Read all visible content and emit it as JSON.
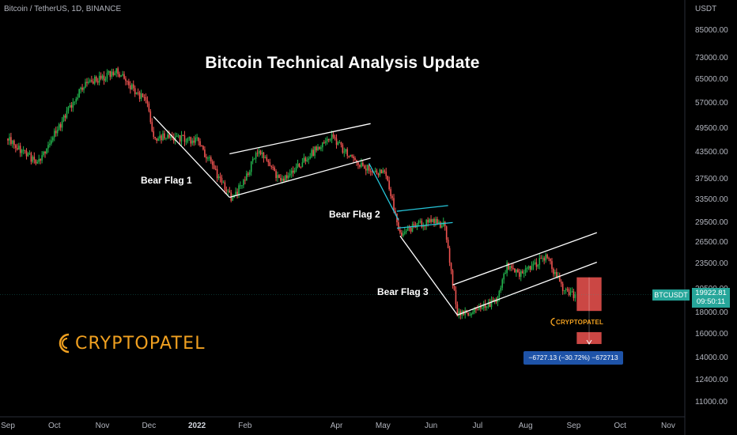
{
  "header": {
    "symbol": "Bitcoin / TetherUS, 1D, BINANCE"
  },
  "title": "Bitcoin Technical Analysis Update",
  "annotations": {
    "bear_flag_1": "Bear Flag 1",
    "bear_flag_2": "Bear Flag 2",
    "bear_flag_3": "Bear Flag 3",
    "measure": "−6727.13 (−30.72%) −672713"
  },
  "watermark": {
    "brand": "CRYPTOPATEL",
    "small": "CRYPTOPATEL"
  },
  "price_axis": {
    "unit": "USDT",
    "current_symbol": "BTCUSDT",
    "current_price": "19922.81",
    "countdown": "09:50:11"
  },
  "colors": {
    "background": "#000000",
    "up": "#26a69a",
    "up_candle": "#22b14c",
    "down": "#ef5350",
    "brand": "#f0a020",
    "measure": "#1e53a8",
    "flag2_pole": "#26c6da"
  },
  "chart_data": {
    "type": "candlestick",
    "title": "Bitcoin Technical Analysis Update",
    "symbol": "BTCUSDT",
    "timeframe": "1D",
    "exchange": "BINANCE",
    "y_unit": "USDT",
    "y_scale": "log",
    "y_ticks": [
      "85000.00",
      "73000.00",
      "65000.00",
      "57000.00",
      "49500.00",
      "43500.00",
      "37500.00",
      "33500.00",
      "29500.00",
      "26500.00",
      "23500.00",
      "20500.00",
      "18000.00",
      "16000.00",
      "14000.00",
      "12400.00",
      "11000.00"
    ],
    "y_ticks_values": [
      85000,
      73000,
      65000,
      57000,
      49500,
      43500,
      37500,
      33500,
      29500,
      26500,
      23500,
      20500,
      18000,
      16000,
      14000,
      12400,
      11000
    ],
    "x_ticks": [
      "Sep",
      "Oct",
      "Nov",
      "Dec",
      "2022",
      "Feb",
      "Apr",
      "May",
      "Jun",
      "Jul",
      "Aug",
      "Sep",
      "Oct",
      "Nov"
    ],
    "x_ticks_dates": [
      "2021-09-01",
      "2021-10-01",
      "2021-11-01",
      "2021-12-01",
      "2022-01-01",
      "2022-02-01",
      "2022-04-01",
      "2022-05-01",
      "2022-06-01",
      "2022-07-01",
      "2022-08-01",
      "2022-09-01",
      "2022-10-01",
      "2022-11-01"
    ],
    "key_points": [
      {
        "date": "2021-09-01",
        "close": 47000
      },
      {
        "date": "2021-09-20",
        "close": 41000
      },
      {
        "date": "2021-10-01",
        "close": 48000
      },
      {
        "date": "2021-10-20",
        "close": 63000
      },
      {
        "date": "2021-11-10",
        "close": 68000
      },
      {
        "date": "2021-11-30",
        "close": 57000
      },
      {
        "date": "2021-12-04",
        "close": 47500
      },
      {
        "date": "2022-01-01",
        "close": 46500
      },
      {
        "date": "2022-01-24",
        "close": 33500
      },
      {
        "date": "2022-02-10",
        "close": 44000
      },
      {
        "date": "2022-02-24",
        "close": 37000
      },
      {
        "date": "2022-03-28",
        "close": 47500
      },
      {
        "date": "2022-04-15",
        "close": 40500
      },
      {
        "date": "2022-05-03",
        "close": 38500
      },
      {
        "date": "2022-05-12",
        "close": 28000
      },
      {
        "date": "2022-06-01",
        "close": 30000
      },
      {
        "date": "2022-06-10",
        "close": 29000
      },
      {
        "date": "2022-06-18",
        "close": 17700
      },
      {
        "date": "2022-07-13",
        "close": 19200
      },
      {
        "date": "2022-07-20",
        "close": 23500
      },
      {
        "date": "2022-07-27",
        "close": 22300
      },
      {
        "date": "2022-08-15",
        "close": 24400
      },
      {
        "date": "2022-08-26",
        "close": 20200
      },
      {
        "date": "2022-09-02",
        "close": 19922.81
      }
    ],
    "current_price": 19922.81,
    "projection": {
      "from": 21900,
      "to": 15175,
      "change": -6727.13,
      "percent": -30.72
    }
  }
}
